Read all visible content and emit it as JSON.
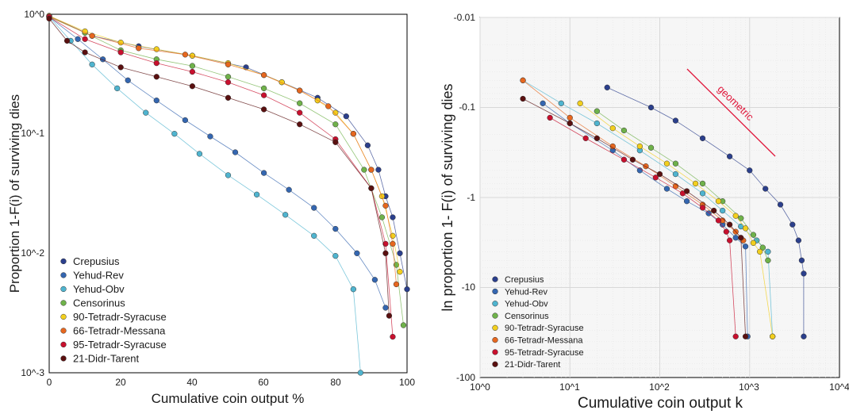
{
  "chart_data": [
    {
      "type": "scatter",
      "title": "",
      "xlabel": "Cumulative coin output %",
      "ylabel": "Proportion 1-F(i) of surviving dies",
      "xlim": [
        0,
        100
      ],
      "ylim": [
        0.001,
        1
      ],
      "y_scale": "log",
      "grid": false,
      "legend_position": "bottom-left",
      "x_ticks": [
        "0",
        "20",
        "40",
        "60",
        "80",
        "100"
      ],
      "y_ticks": [
        "10^-3",
        "10^-2",
        "10^-1",
        "10^0"
      ],
      "series": [
        {
          "name": "Crepusius",
          "color": "#2b3f8c",
          "points": [
            [
              0,
              0.97
            ],
            [
              12,
              0.66
            ],
            [
              25,
              0.54
            ],
            [
              40,
              0.45
            ],
            [
              55,
              0.36
            ],
            [
              65,
              0.27
            ],
            [
              75,
              0.2
            ],
            [
              83,
              0.14
            ],
            [
              89,
              0.08
            ],
            [
              92,
              0.05
            ],
            [
              94,
              0.03
            ],
            [
              96,
              0.02
            ],
            [
              98,
              0.01
            ],
            [
              100,
              0.005
            ]
          ]
        },
        {
          "name": "Yehud-Rev",
          "color": "#3466b0",
          "points": [
            [
              0,
              0.95
            ],
            [
              8,
              0.62
            ],
            [
              15,
              0.42
            ],
            [
              22,
              0.28
            ],
            [
              30,
              0.19
            ],
            [
              38,
              0.13
            ],
            [
              45,
              0.095
            ],
            [
              52,
              0.07
            ],
            [
              60,
              0.047
            ],
            [
              67,
              0.034
            ],
            [
              74,
              0.024
            ],
            [
              80,
              0.016
            ],
            [
              86,
              0.01
            ],
            [
              91,
              0.006
            ],
            [
              94,
              0.0035
            ]
          ]
        },
        {
          "name": "Yehud-Obv",
          "color": "#4fb4cf",
          "points": [
            [
              0,
              0.95
            ],
            [
              6,
              0.6
            ],
            [
              12,
              0.38
            ],
            [
              19,
              0.24
            ],
            [
              27,
              0.15
            ],
            [
              35,
              0.1
            ],
            [
              42,
              0.068
            ],
            [
              50,
              0.045
            ],
            [
              58,
              0.031
            ],
            [
              66,
              0.021
            ],
            [
              74,
              0.014
            ],
            [
              80,
              0.0095
            ],
            [
              85,
              0.005
            ],
            [
              87,
              0.001
            ]
          ]
        },
        {
          "name": "Censorinus",
          "color": "#6fb24a",
          "points": [
            [
              0,
              0.95
            ],
            [
              10,
              0.7
            ],
            [
              20,
              0.5
            ],
            [
              30,
              0.42
            ],
            [
              40,
              0.37
            ],
            [
              50,
              0.3
            ],
            [
              60,
              0.24
            ],
            [
              70,
              0.18
            ],
            [
              80,
              0.12
            ],
            [
              88,
              0.05
            ],
            [
              93,
              0.02
            ],
            [
              97,
              0.008
            ],
            [
              99,
              0.0025
            ]
          ]
        },
        {
          "name": "90-Tetradr-Syracuse",
          "color": "#f2cf1e",
          "points": [
            [
              0,
              0.97
            ],
            [
              10,
              0.72
            ],
            [
              20,
              0.58
            ],
            [
              30,
              0.51
            ],
            [
              40,
              0.45
            ],
            [
              50,
              0.39
            ],
            [
              60,
              0.31
            ],
            [
              65,
              0.27
            ],
            [
              70,
              0.23
            ],
            [
              75,
              0.19
            ],
            [
              80,
              0.15
            ],
            [
              85,
              0.1
            ],
            [
              90,
              0.05
            ],
            [
              93,
              0.03
            ],
            [
              96,
              0.014
            ],
            [
              98,
              0.007
            ]
          ]
        },
        {
          "name": "66-Tetradr-Messana",
          "color": "#e6671f",
          "points": [
            [
              0,
              0.96
            ],
            [
              12,
              0.66
            ],
            [
              25,
              0.52
            ],
            [
              38,
              0.46
            ],
            [
              50,
              0.38
            ],
            [
              60,
              0.31
            ],
            [
              70,
              0.23
            ],
            [
              78,
              0.17
            ],
            [
              85,
              0.1
            ],
            [
              90,
              0.05
            ],
            [
              94,
              0.025
            ],
            [
              96,
              0.012
            ],
            [
              97,
              0.0055
            ]
          ]
        },
        {
          "name": "95-Tetradr-Syracuse",
          "color": "#c8102e",
          "points": [
            [
              0,
              0.95
            ],
            [
              10,
              0.62
            ],
            [
              20,
              0.48
            ],
            [
              30,
              0.39
            ],
            [
              40,
              0.33
            ],
            [
              50,
              0.27
            ],
            [
              60,
              0.21
            ],
            [
              70,
              0.15
            ],
            [
              80,
              0.09
            ],
            [
              90,
              0.035
            ],
            [
              94,
              0.012
            ],
            [
              96,
              0.002
            ]
          ]
        },
        {
          "name": "21-Didr-Tarent",
          "color": "#5a1010",
          "points": [
            [
              0,
              0.92
            ],
            [
              5,
              0.6
            ],
            [
              10,
              0.48
            ],
            [
              20,
              0.36
            ],
            [
              30,
              0.3
            ],
            [
              40,
              0.25
            ],
            [
              50,
              0.2
            ],
            [
              60,
              0.16
            ],
            [
              70,
              0.12
            ],
            [
              80,
              0.085
            ],
            [
              90,
              0.035
            ],
            [
              94,
              0.01
            ],
            [
              95,
              0.003
            ]
          ]
        }
      ]
    },
    {
      "type": "scatter",
      "title": "",
      "xlabel": "Cumulative coin output k",
      "ylabel": "ln proportion 1- F(i) of surviving dies",
      "xlim": [
        1,
        10000
      ],
      "ylim": [
        -100,
        -0.01
      ],
      "x_scale": "log",
      "y_scale": "log (negative values, -0.01 at top)",
      "grid": true,
      "legend_position": "bottom-left",
      "x_ticks": [
        "10^0",
        "10^1",
        "10^2",
        "10^3",
        "10^4"
      ],
      "y_ticks": [
        "-0.01",
        "-0.1",
        "-1",
        "-10",
        "-100"
      ],
      "annotation": {
        "text": "geometric",
        "color": "#e0183c"
      },
      "series": [
        {
          "name": "Crepusius",
          "color": "#2b3f8c",
          "points": [
            [
              26,
              -0.06
            ],
            [
              80,
              -0.1
            ],
            [
              150,
              -0.14
            ],
            [
              300,
              -0.22
            ],
            [
              600,
              -0.35
            ],
            [
              1000,
              -0.5
            ],
            [
              1500,
              -0.8
            ],
            [
              2200,
              -1.2
            ],
            [
              3000,
              -2
            ],
            [
              3500,
              -3
            ],
            [
              3800,
              -5
            ],
            [
              4000,
              -7
            ],
            [
              4000,
              -35
            ]
          ]
        },
        {
          "name": "Yehud-Rev",
          "color": "#3466b0",
          "points": [
            [
              5,
              -0.09
            ],
            [
              10,
              -0.15
            ],
            [
              30,
              -0.3
            ],
            [
              60,
              -0.5
            ],
            [
              120,
              -0.8
            ],
            [
              200,
              -1.1
            ],
            [
              350,
              -1.5
            ],
            [
              500,
              -2
            ],
            [
              700,
              -2.8
            ],
            [
              900,
              -3.5
            ],
            [
              950,
              -35
            ]
          ]
        },
        {
          "name": "Yehud-Obv",
          "color": "#4fb4cf",
          "points": [
            [
              3,
              -0.05
            ],
            [
              8,
              -0.09
            ],
            [
              20,
              -0.15
            ],
            [
              60,
              -0.3
            ],
            [
              150,
              -0.55
            ],
            [
              300,
              -0.9
            ],
            [
              500,
              -1.4
            ],
            [
              800,
              -2.1
            ],
            [
              1200,
              -3
            ],
            [
              1600,
              -4
            ],
            [
              1800,
              -35
            ]
          ]
        },
        {
          "name": "Censorinus",
          "color": "#6fb24a",
          "points": [
            [
              20,
              -0.11
            ],
            [
              40,
              -0.18
            ],
            [
              80,
              -0.28
            ],
            [
              150,
              -0.42
            ],
            [
              300,
              -0.7
            ],
            [
              500,
              -1.1
            ],
            [
              800,
              -1.7
            ],
            [
              1100,
              -2.6
            ],
            [
              1400,
              -3.6
            ],
            [
              1600,
              -5
            ]
          ]
        },
        {
          "name": "90-Tetradr-Syracuse",
          "color": "#f2cf1e",
          "points": [
            [
              13,
              -0.09
            ],
            [
              30,
              -0.17
            ],
            [
              60,
              -0.27
            ],
            [
              120,
              -0.42
            ],
            [
              250,
              -0.7
            ],
            [
              450,
              -1.1
            ],
            [
              700,
              -1.6
            ],
            [
              900,
              -2.2
            ],
            [
              1100,
              -3.2
            ],
            [
              1300,
              -4
            ],
            [
              1800,
              -35
            ]
          ]
        },
        {
          "name": "66-Tetradr-Messana",
          "color": "#e6671f",
          "points": [
            [
              3,
              -0.05
            ],
            [
              10,
              -0.13
            ],
            [
              30,
              -0.27
            ],
            [
              70,
              -0.45
            ],
            [
              150,
              -0.75
            ],
            [
              300,
              -1.2
            ],
            [
              500,
              -1.8
            ],
            [
              700,
              -2.4
            ],
            [
              850,
              -3
            ]
          ]
        },
        {
          "name": "95-Tetradr-Syracuse",
          "color": "#c8102e",
          "points": [
            [
              6,
              -0.13
            ],
            [
              15,
              -0.22
            ],
            [
              40,
              -0.38
            ],
            [
              90,
              -0.6
            ],
            [
              180,
              -0.9
            ],
            [
              300,
              -1.3
            ],
            [
              450,
              -1.8
            ],
            [
              550,
              -2.4
            ],
            [
              600,
              -3
            ],
            [
              700,
              -35
            ]
          ]
        },
        {
          "name": "21-Didr-Tarent",
          "color": "#5a1010",
          "points": [
            [
              3,
              -0.08
            ],
            [
              10,
              -0.15
            ],
            [
              20,
              -0.22
            ],
            [
              50,
              -0.38
            ],
            [
              100,
              -0.55
            ],
            [
              200,
              -0.85
            ],
            [
              400,
              -1.4
            ],
            [
              600,
              -2
            ],
            [
              800,
              -2.8
            ],
            [
              900,
              -35
            ]
          ]
        }
      ]
    }
  ]
}
